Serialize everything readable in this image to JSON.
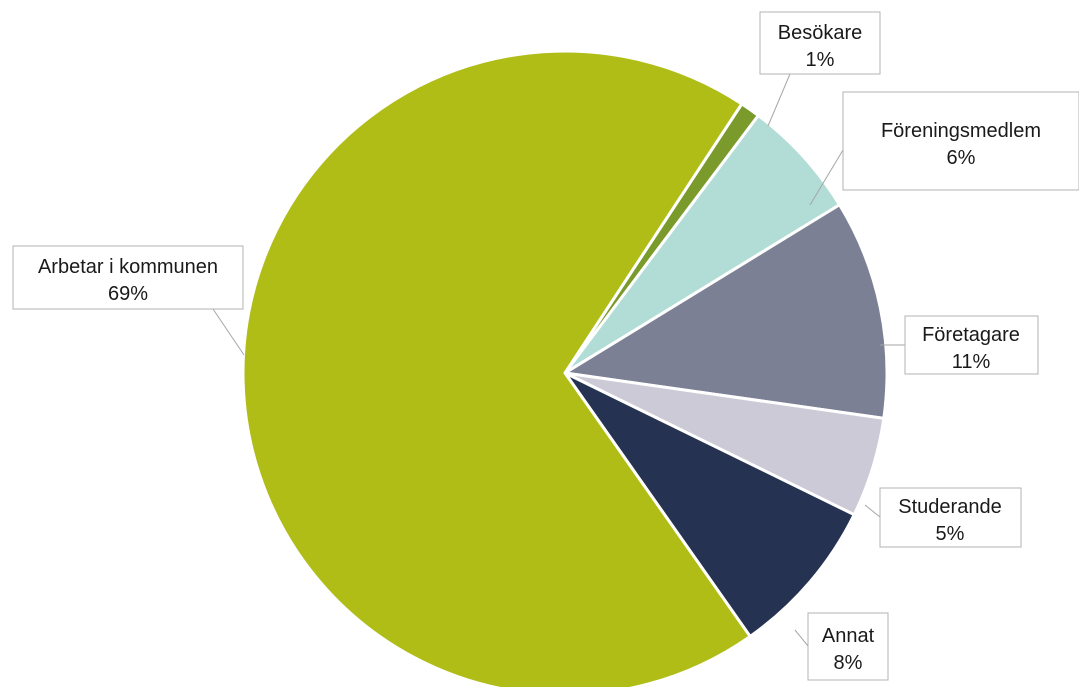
{
  "chart_data": {
    "type": "pie",
    "title": "",
    "slices": [
      {
        "label": "Besökare",
        "value": 1,
        "value_label": "1%",
        "color": "#7a9a2c"
      },
      {
        "label": "Föreningsmedlem",
        "value": 6,
        "value_label": "6%",
        "color": "#b2ddd6"
      },
      {
        "label": "Företagare",
        "value": 11,
        "value_label": "11%",
        "color": "#7b8094"
      },
      {
        "label": "Studerande",
        "value": 5,
        "value_label": "5%",
        "color": "#cbcad6"
      },
      {
        "label": "Annat",
        "value": 8,
        "value_label": "8%",
        "color": "#263252"
      },
      {
        "label": "Arbetar i kommunen",
        "value": 69,
        "value_label": "69%",
        "color": "#afbd16"
      }
    ],
    "data_labels": "outside with callout boxes and leader lines",
    "slice_border_color": "#ffffff"
  }
}
